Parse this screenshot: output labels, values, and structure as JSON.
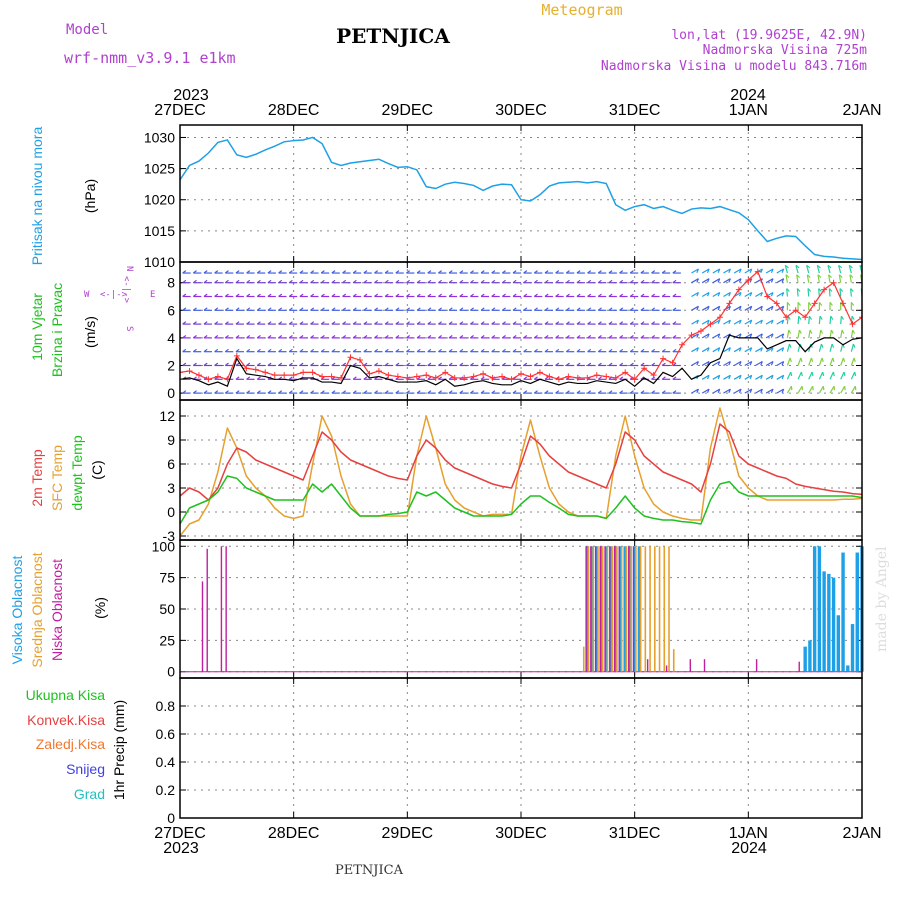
{
  "header": {
    "model_label": "Model",
    "model_name": "wrf-nmm_v3.9.1  e1km",
    "station": "PETNJICA",
    "meteogram": "Meteogram",
    "lonlat": "lon,lat (19.9625E, 42.9N)",
    "elevation": "Nadmorska Visina 725m",
    "model_elevation": "Nadmorska Visina u modelu 843.716m",
    "footer_station": "PETNJICA",
    "credit": "made by Angel"
  },
  "colors": {
    "pressure": "#1ea0e6",
    "wind_speed": "#000000",
    "gust": "#ff3333",
    "temp2m": "#e64040",
    "sfc_temp": "#e6a030",
    "dewpt": "#20c020",
    "cloud_high": "#1ea0e6",
    "cloud_mid": "#e6a030",
    "cloud_low": "#c020a0",
    "grid": "#888888",
    "purple": "#b040d0"
  },
  "time_axis": {
    "day_labels": [
      "27DEC",
      "28DEC",
      "29DEC",
      "30DEC",
      "31DEC",
      "1JAN",
      "2JAN"
    ],
    "year_top_left": "2023",
    "year_top_mid": "2024",
    "year_bottom_left": "2023",
    "year_bottom_mid": "2024"
  },
  "chart_data": [
    {
      "type": "line",
      "panel": "pressure",
      "ylabel": "Pritisak na nivou mora",
      "unit": "(hPa)",
      "ylim": [
        1010,
        1032
      ],
      "yticks": [
        1010,
        1015,
        1020,
        1025,
        1030
      ],
      "x_hours": [
        0,
        2,
        4,
        6,
        8,
        10,
        12,
        14,
        16,
        18,
        20,
        22,
        24,
        26,
        28,
        30,
        32,
        34,
        36,
        38,
        40,
        42,
        44,
        46,
        48,
        50,
        52,
        54,
        56,
        58,
        60,
        62,
        64,
        66,
        68,
        70,
        72,
        74,
        76,
        78,
        80,
        82,
        84,
        86,
        88,
        90,
        92,
        94,
        96,
        98,
        100,
        102,
        104,
        106,
        108,
        110,
        112,
        114,
        116,
        118,
        120,
        122,
        124,
        126,
        128,
        130,
        132,
        134,
        136,
        138,
        140,
        142,
        144
      ],
      "values": [
        1023.2,
        1025.5,
        1026.2,
        1027.5,
        1029.2,
        1029.6,
        1027.2,
        1026.8,
        1027.3,
        1028.0,
        1028.6,
        1029.3,
        1029.5,
        1029.6,
        1030.0,
        1029.0,
        1026.0,
        1025.5,
        1025.9,
        1026.1,
        1026.3,
        1026.5,
        1025.8,
        1025.2,
        1025.3,
        1024.8,
        1022.1,
        1021.8,
        1022.5,
        1022.8,
        1022.6,
        1022.3,
        1021.5,
        1022.2,
        1022.5,
        1022.4,
        1020.0,
        1019.8,
        1020.8,
        1022.2,
        1022.7,
        1022.8,
        1022.9,
        1022.7,
        1022.9,
        1022.6,
        1019.2,
        1018.3,
        1018.9,
        1019.2,
        1018.6,
        1018.9,
        1018.3,
        1017.8,
        1018.5,
        1018.7,
        1018.6,
        1018.9,
        1018.4,
        1017.9,
        1016.8,
        1015.0,
        1013.3,
        1013.8,
        1014.2,
        1014.1,
        1012.6,
        1011.2,
        1010.9,
        1010.8,
        1010.6,
        1010.5,
        1010.4
      ]
    },
    {
      "type": "line",
      "panel": "wind",
      "ylabel_1": "10m Vjetar",
      "ylabel_2": "Brzina i Pravac",
      "unit": "(m/s)",
      "compass": {
        "w": "W",
        "e": "E",
        "n": "N",
        "s": "S",
        "arrow": "<-|->"
      },
      "ylim": [
        -0.5,
        9.5
      ],
      "yticks": [
        0,
        2,
        4,
        6,
        8
      ],
      "series": [
        {
          "values": [
            1.0,
            1.1,
            0.9,
            0.6,
            0.8,
            0.5,
            2.5,
            1.4,
            1.3,
            1.2,
            1.0,
            1.0,
            0.9,
            1.1,
            1.1,
            0.8,
            0.8,
            0.7,
            2.0,
            1.8,
            1.1,
            1.2,
            1.0,
            0.8,
            0.8,
            0.8,
            0.9,
            0.6,
            1.0,
            0.5,
            0.6,
            0.8,
            0.9,
            0.7,
            0.6,
            0.6,
            0.9,
            0.7,
            1.0,
            0.8,
            0.6,
            0.8,
            0.7,
            0.7,
            0.9,
            0.8,
            0.7,
            1.0,
            0.5,
            1.1,
            0.7,
            1.5,
            1.2,
            1.8,
            1.0,
            1.3,
            2.2,
            2.5,
            4.2,
            4.0,
            4.0,
            4.0,
            3.2,
            3.5,
            3.8,
            3.8,
            3.0,
            3.7,
            4.0,
            4.0,
            3.5,
            3.9,
            4.0
          ]
        },
        {
          "values": [
            1.5,
            1.6,
            1.3,
            1.0,
            1.2,
            1.0,
            2.7,
            1.8,
            1.7,
            1.5,
            1.3,
            1.3,
            1.3,
            1.5,
            1.5,
            1.2,
            1.2,
            1.1,
            2.6,
            2.4,
            1.4,
            1.6,
            1.3,
            1.2,
            1.1,
            1.2,
            1.3,
            1.1,
            1.5,
            1.1,
            1.1,
            1.2,
            1.4,
            1.1,
            1.2,
            1.0,
            1.4,
            1.2,
            1.5,
            1.2,
            1.0,
            1.2,
            1.1,
            1.1,
            1.3,
            1.2,
            1.1,
            1.5,
            1.0,
            1.8,
            1.3,
            2.5,
            2.2,
            3.5,
            4.2,
            4.5,
            5.0,
            5.5,
            6.5,
            7.5,
            8.2,
            8.8,
            7.0,
            6.5,
            5.5,
            6.0,
            5.5,
            6.5,
            7.5,
            8.0,
            6.5,
            5.0,
            5.5
          ]
        }
      ]
    },
    {
      "type": "line",
      "panel": "temperature",
      "ylabel_1": "2m Temp",
      "ylabel_2": "SFC Temp",
      "ylabel_3": "dewpt Temp",
      "unit": "(C)",
      "ylim": [
        -3.5,
        14
      ],
      "yticks": [
        -3,
        0,
        3,
        6,
        9,
        12
      ],
      "series": [
        {
          "name": "2m Temp",
          "values": [
            2.0,
            3.0,
            2.5,
            1.5,
            3.0,
            6.0,
            8.0,
            7.5,
            6.5,
            6.0,
            5.5,
            5.0,
            4.5,
            4.0,
            7.0,
            10.0,
            9.0,
            7.5,
            6.5,
            6.0,
            5.5,
            5.0,
            4.5,
            4.2,
            4.0,
            7.0,
            9.0,
            8.0,
            6.5,
            5.5,
            5.0,
            4.5,
            4.0,
            3.5,
            3.2,
            3.0,
            6.0,
            9.5,
            8.5,
            7.0,
            6.0,
            5.0,
            4.5,
            4.0,
            3.5,
            3.0,
            6.0,
            10.0,
            9.0,
            7.0,
            6.0,
            5.0,
            4.5,
            4.0,
            3.5,
            2.5,
            6.0,
            11.0,
            10.0,
            7.0,
            6.0,
            5.5,
            5.0,
            4.5,
            4.2,
            3.5,
            3.2,
            3.0,
            2.8,
            2.6,
            2.5,
            2.3,
            2.2
          ]
        },
        {
          "name": "SFC Temp",
          "values": [
            -3.0,
            -1.5,
            -1.0,
            1.0,
            5.0,
            10.5,
            8.0,
            4.5,
            3.0,
            2.0,
            0.5,
            -0.5,
            -0.8,
            -0.5,
            6.0,
            12.0,
            9.5,
            4.5,
            1.0,
            -0.5,
            -0.5,
            -0.5,
            -0.5,
            -0.5,
            -0.5,
            7.0,
            12.0,
            8.0,
            3.5,
            1.5,
            0.5,
            0.0,
            -0.5,
            -0.3,
            -0.3,
            -0.3,
            7.0,
            11.5,
            7.0,
            3.0,
            1.0,
            0.0,
            -0.5,
            -0.5,
            -0.5,
            -0.8,
            7.0,
            12.0,
            7.0,
            3.0,
            1.0,
            0.0,
            -0.5,
            -0.8,
            -1.0,
            -1.0,
            8.0,
            13.0,
            9.0,
            4.5,
            3.0,
            2.0,
            1.5,
            1.5,
            1.5,
            1.5,
            1.5,
            1.5,
            1.5,
            1.5,
            1.6,
            1.6,
            1.7
          ]
        },
        {
          "name": "dewpt Temp",
          "values": [
            -1.5,
            0.5,
            1.0,
            1.5,
            2.5,
            4.5,
            4.2,
            3.0,
            2.5,
            2.0,
            1.5,
            1.5,
            1.5,
            1.5,
            3.5,
            2.5,
            3.5,
            2.0,
            0.5,
            -0.5,
            -0.5,
            -0.5,
            -0.3,
            -0.2,
            0.0,
            2.5,
            2.0,
            2.5,
            1.5,
            0.5,
            0.0,
            -0.5,
            -0.5,
            -0.5,
            -0.5,
            -0.3,
            1.0,
            2.0,
            2.0,
            1.2,
            0.5,
            -0.3,
            -0.5,
            -0.5,
            -0.5,
            -0.8,
            0.5,
            2.0,
            0.5,
            -0.5,
            -0.8,
            -1.0,
            -1.0,
            -1.2,
            -1.3,
            -1.5,
            1.5,
            3.5,
            3.8,
            2.5,
            2.0,
            2.0,
            2.0,
            2.0,
            2.0,
            2.0,
            2.0,
            2.0,
            2.0,
            2.0,
            2.0,
            2.0,
            1.8
          ]
        }
      ]
    },
    {
      "type": "bar",
      "panel": "clouds",
      "ylabel_1": "Visoka Oblacnost",
      "ylabel_2": "Srednja Oblacnost",
      "ylabel_3": "Niska Oblacnost",
      "unit": "(%)",
      "ylim": [
        -5,
        105
      ],
      "yticks": [
        0,
        25,
        50,
        75,
        100
      ],
      "series": [
        {
          "name": "Visoka Oblacnost",
          "points": [
            [
              86,
              100
            ],
            [
              87,
              100
            ],
            [
              88,
              100
            ],
            [
              89,
              100
            ],
            [
              90,
              100
            ],
            [
              91,
              100
            ],
            [
              92,
              100
            ],
            [
              93,
              100
            ],
            [
              94,
              100
            ],
            [
              95,
              100
            ],
            [
              96,
              100
            ],
            [
              97,
              100
            ],
            [
              132,
              20
            ],
            [
              133,
              25
            ],
            [
              134,
              100
            ],
            [
              135,
              100
            ],
            [
              136,
              80
            ],
            [
              137,
              78
            ],
            [
              138,
              75
            ],
            [
              139,
              45
            ],
            [
              140,
              95
            ],
            [
              141,
              5
            ],
            [
              142,
              38
            ],
            [
              143,
              95
            ],
            [
              144,
              100
            ]
          ]
        },
        {
          "name": "Srednja Oblacnost",
          "points": [
            [
              85,
              20
            ],
            [
              86,
              100
            ],
            [
              87,
              100
            ],
            [
              88,
              100
            ],
            [
              89,
              100
            ],
            [
              90,
              100
            ],
            [
              91,
              100
            ],
            [
              92,
              100
            ],
            [
              93,
              100
            ],
            [
              94,
              100
            ],
            [
              95,
              100
            ],
            [
              96,
              100
            ],
            [
              97,
              100
            ],
            [
              98,
              100
            ],
            [
              99,
              100
            ],
            [
              100,
              100
            ],
            [
              101,
              100
            ],
            [
              102,
              100
            ],
            [
              103,
              100
            ],
            [
              104,
              18
            ]
          ]
        },
        {
          "name": "Niska Oblacnost",
          "points": [
            [
              5,
              72
            ],
            [
              6,
              98
            ],
            [
              9,
              100
            ],
            [
              10,
              100
            ],
            [
              86,
              100
            ],
            [
              87,
              100
            ],
            [
              88,
              100
            ],
            [
              89,
              100
            ],
            [
              90,
              100
            ],
            [
              91,
              100
            ],
            [
              92,
              100
            ],
            [
              93,
              100
            ],
            [
              95,
              100
            ],
            [
              96,
              100
            ],
            [
              99,
              10
            ],
            [
              103,
              5
            ],
            [
              108,
              10
            ],
            [
              111,
              10
            ],
            [
              122,
              10
            ],
            [
              131,
              8
            ]
          ]
        }
      ]
    },
    {
      "type": "line",
      "panel": "precipitation",
      "legend": [
        "Ukupna  Kisa",
        "Konvek.Kisa",
        "Zaledj.Kisa",
        "Snijeg",
        "Grad"
      ],
      "legend_colors": [
        "#20c020",
        "#e64040",
        "#f07830",
        "#4040e0",
        "#20c0c0"
      ],
      "ylabel": "1hr Precip (mm)",
      "ylim": [
        0,
        1.0
      ],
      "yticks": [
        0,
        0.2,
        0.4,
        0.6,
        0.8
      ],
      "values": []
    }
  ]
}
